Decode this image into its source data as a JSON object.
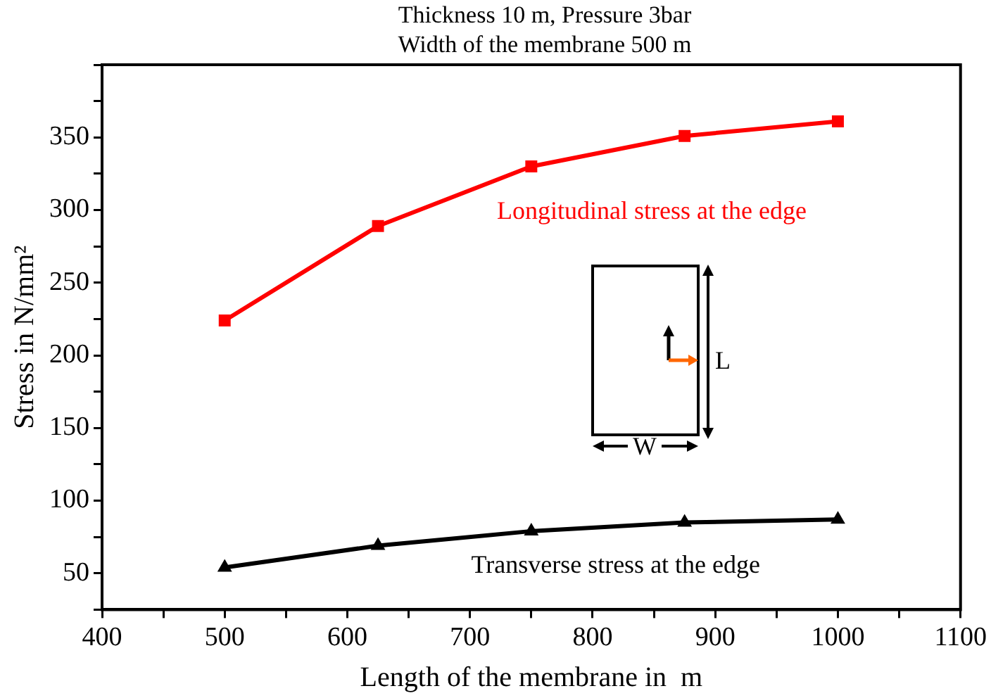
{
  "chart_data": {
    "type": "line",
    "title": "Thickness 10  m, Pressure 3bar",
    "subtitle": "Width of the membrane 500  m",
    "xlabel": "Length of the membrane in  m",
    "ylabel": "Stress in N/mm²",
    "x": [
      500,
      625,
      750,
      875,
      1000
    ],
    "series": [
      {
        "name": "Longitudinal stress at the edge",
        "color": "#ff0000",
        "marker": "square",
        "values": [
          224,
          289,
          330,
          351,
          361
        ]
      },
      {
        "name": "Transverse stress at the edge",
        "color": "#000000",
        "marker": "triangle",
        "values": [
          54,
          69,
          79,
          85,
          87
        ]
      }
    ],
    "xlim": [
      400,
      1100
    ],
    "xticks": [
      400,
      {
        "value": 450,
        "label": null
      },
      500,
      {
        "value": 550,
        "label": null
      },
      600,
      {
        "value": 650,
        "label": null
      },
      700,
      {
        "value": 750,
        "label": null
      },
      800,
      {
        "value": 850,
        "label": null
      },
      900,
      {
        "value": 950,
        "label": null
      },
      1000,
      {
        "value": 1050,
        "label": null
      },
      1100
    ],
    "ylim": [
      25,
      400
    ],
    "yticks": [
      {
        "value": 25,
        "label": null
      },
      50,
      {
        "value": 75,
        "label": null
      },
      100,
      {
        "value": 125,
        "label": null
      },
      150,
      {
        "value": 175,
        "label": null
      },
      200,
      {
        "value": 225,
        "label": null
      },
      250,
      {
        "value": 275,
        "label": null
      },
      300,
      {
        "value": 325,
        "label": null
      },
      350,
      {
        "value": 375,
        "label": null
      },
      {
        "value": 400,
        "label": null
      }
    ],
    "grid": false,
    "legend": false,
    "line_style": "solid",
    "annotations": [
      "L",
      "W"
    ]
  }
}
